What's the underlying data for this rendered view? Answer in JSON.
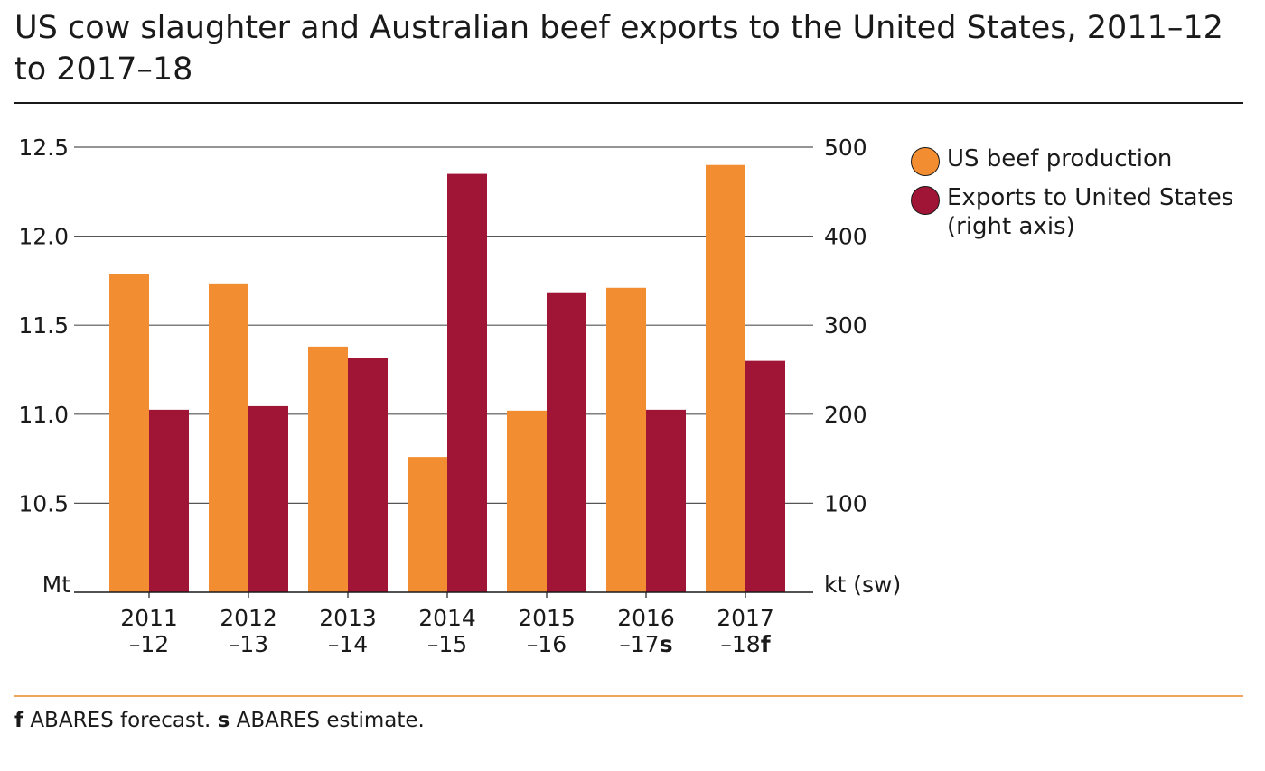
{
  "title": "US cow slaughter and Australian beef exports to the United States, 2011–12 to 2017–18",
  "colors": {
    "us_beef": "#f28d31",
    "exports": "#a01535",
    "rule_orange": "#f0a55a",
    "grid": "#555555"
  },
  "legend": [
    {
      "label": "US beef production",
      "color": "#f28d31"
    },
    {
      "label": "Exports to United States (right axis)",
      "color": "#a01535"
    }
  ],
  "footnote": {
    "f_marker": "f",
    "f_text": " ABARES forecast. ",
    "s_marker": "s",
    "s_text": " ABARES estimate."
  },
  "chart_data": {
    "type": "bar",
    "title": "US cow slaughter and Australian beef exports to the United States, 2011–12 to 2017–18",
    "categories": [
      {
        "line1": "2011",
        "line2": "–12",
        "suffix": ""
      },
      {
        "line1": "2012",
        "line2": "–13",
        "suffix": ""
      },
      {
        "line1": "2013",
        "line2": "–14",
        "suffix": ""
      },
      {
        "line1": "2014",
        "line2": "–15",
        "suffix": ""
      },
      {
        "line1": "2015",
        "line2": "–16",
        "suffix": ""
      },
      {
        "line1": "2016",
        "line2": "–17",
        "suffix": "s"
      },
      {
        "line1": "2017",
        "line2": "–18",
        "suffix": "f"
      }
    ],
    "series": [
      {
        "name": "US beef production",
        "axis": "left",
        "color": "#f28d31",
        "values": [
          11.79,
          11.73,
          11.38,
          10.76,
          11.02,
          11.71,
          12.4
        ]
      },
      {
        "name": "Exports to United States (right axis)",
        "axis": "right",
        "color": "#a01535",
        "values": [
          205,
          209,
          263,
          470,
          337,
          205,
          260
        ]
      }
    ],
    "left_axis": {
      "label": "Mt",
      "ylim": [
        10.0,
        12.5
      ],
      "ticks": [
        "12.5",
        "12.0",
        "11.5",
        "11.0",
        "10.5"
      ],
      "tick_values": [
        12.5,
        12.0,
        11.5,
        11.0,
        10.5
      ]
    },
    "right_axis": {
      "label": "kt (sw)",
      "ylim": [
        0,
        500
      ],
      "ticks": [
        "500",
        "400",
        "300",
        "200",
        "100"
      ],
      "tick_values": [
        500,
        400,
        300,
        200,
        100
      ]
    },
    "grid": true,
    "legend_position": "right"
  }
}
